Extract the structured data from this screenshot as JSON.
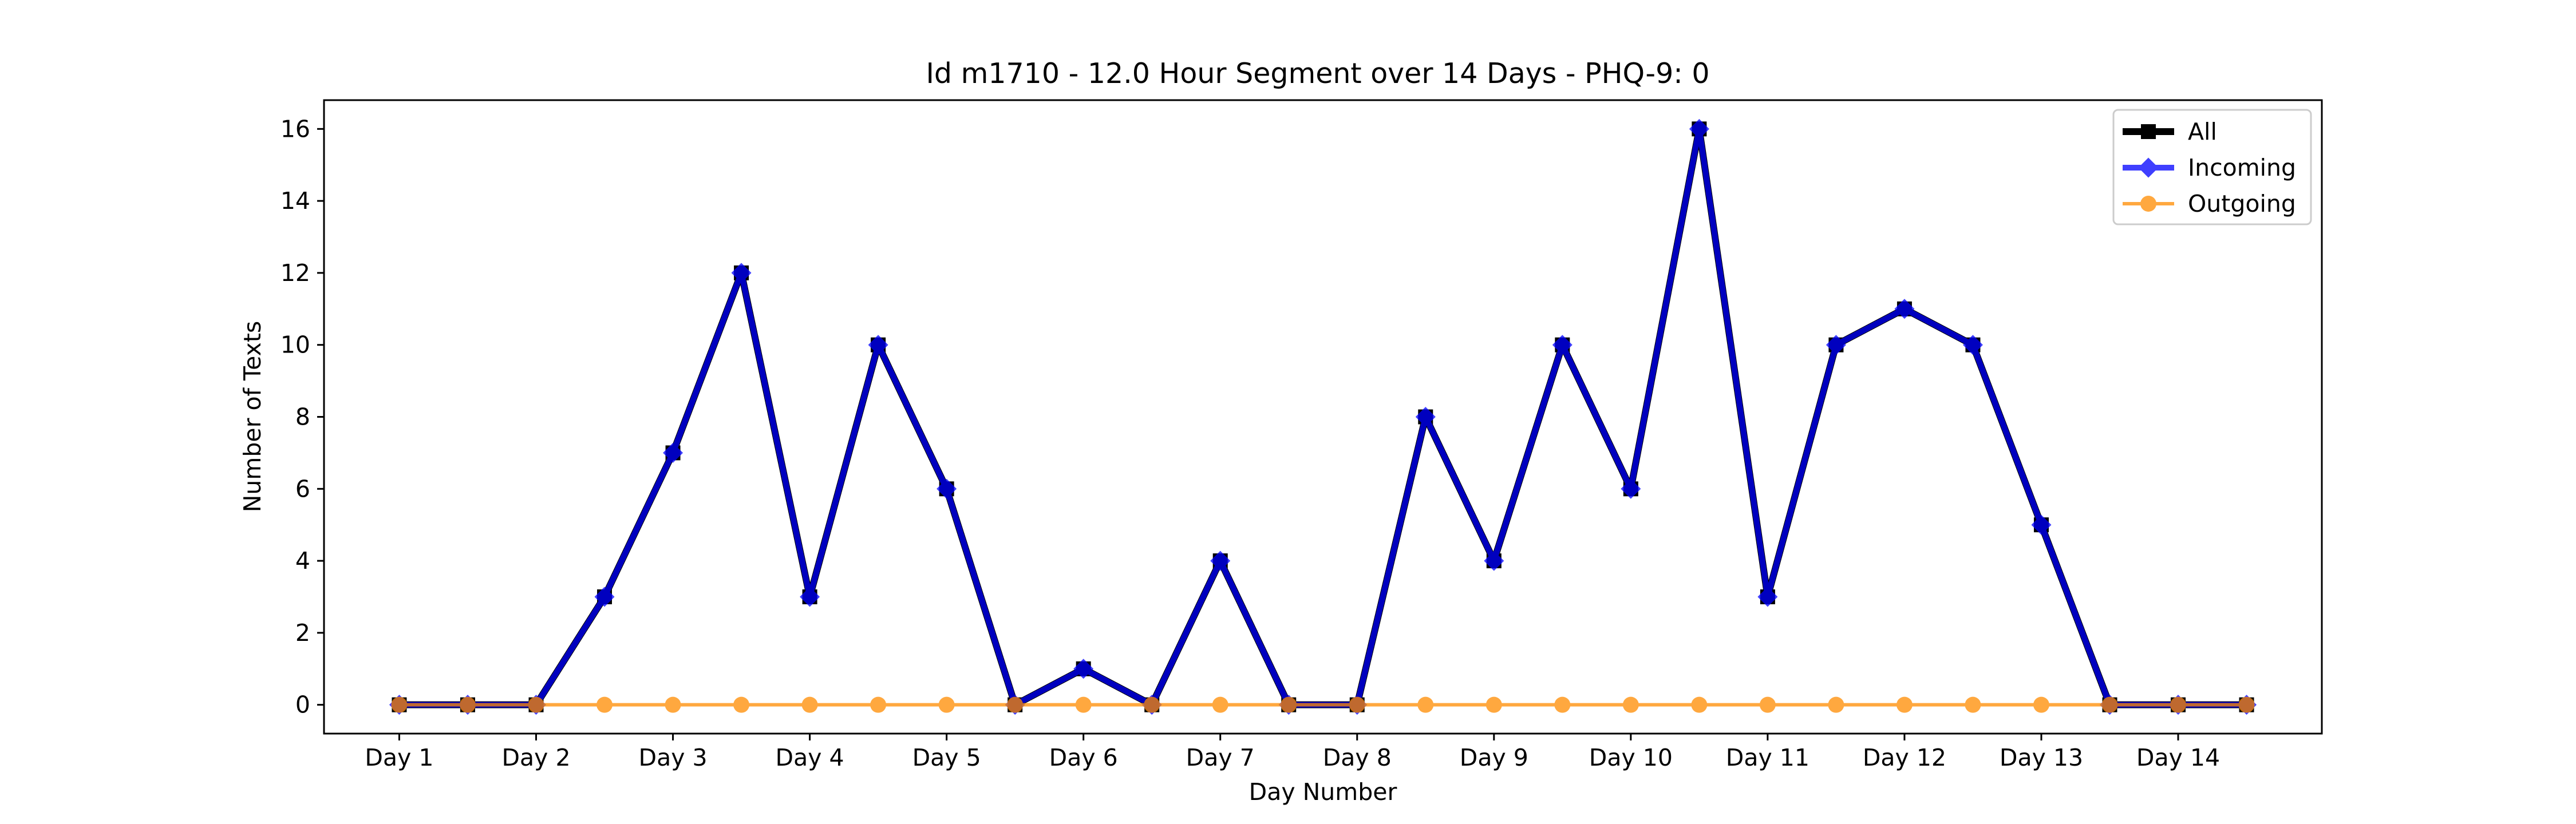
{
  "chart_data": {
    "type": "line",
    "title": "Id m1710 - 12.0 Hour Segment over 14 Days - PHQ-9: 0",
    "xlabel": "Day Number",
    "ylabel": "Number of Texts",
    "ylim": [
      -0.8,
      16.8
    ],
    "yticks": [
      0,
      2,
      4,
      6,
      8,
      10,
      12,
      14,
      16
    ],
    "x_points": [
      1,
      1.5,
      2,
      2.5,
      3,
      3.5,
      4,
      4.5,
      5,
      5.5,
      6,
      6.5,
      7,
      7.5,
      8,
      8.5,
      9,
      9.5,
      10,
      10.5,
      11,
      11.5,
      12,
      12.5,
      13,
      13.5,
      14,
      14.5
    ],
    "xlim": [
      0.45,
      15.05
    ],
    "xticks": [
      1,
      2,
      3,
      4,
      5,
      6,
      7,
      8,
      9,
      10,
      11,
      12,
      13,
      14
    ],
    "xtick_labels": [
      "Day 1",
      "Day 2",
      "Day 3",
      "Day 4",
      "Day 5",
      "Day 6",
      "Day 7",
      "Day 8",
      "Day 9",
      "Day 10",
      "Day 11",
      "Day 12",
      "Day 13",
      "Day 14"
    ],
    "grid": false,
    "legend_position": "top-right",
    "series": [
      {
        "name": "All",
        "color": "#000000",
        "marker": "square",
        "values": [
          0,
          0,
          0,
          3,
          7,
          12,
          3,
          10,
          6,
          0,
          1,
          0,
          4,
          0,
          0,
          8,
          4,
          10,
          6,
          16,
          3,
          10,
          11,
          10,
          5,
          0,
          0,
          0
        ]
      },
      {
        "name": "Incoming",
        "color": "#0000ff",
        "marker": "diamond",
        "values": [
          0,
          0,
          0,
          3,
          7,
          12,
          3,
          10,
          6,
          0,
          1,
          0,
          4,
          0,
          0,
          8,
          4,
          10,
          6,
          16,
          3,
          10,
          11,
          10,
          5,
          0,
          0,
          0
        ]
      },
      {
        "name": "Outgoing",
        "color": "#ff8c00",
        "marker": "circle",
        "values": [
          0,
          0,
          0,
          0,
          0,
          0,
          0,
          0,
          0,
          0,
          0,
          0,
          0,
          0,
          0,
          0,
          0,
          0,
          0,
          0,
          0,
          0,
          0,
          0,
          0,
          0,
          0,
          0
        ]
      }
    ]
  }
}
